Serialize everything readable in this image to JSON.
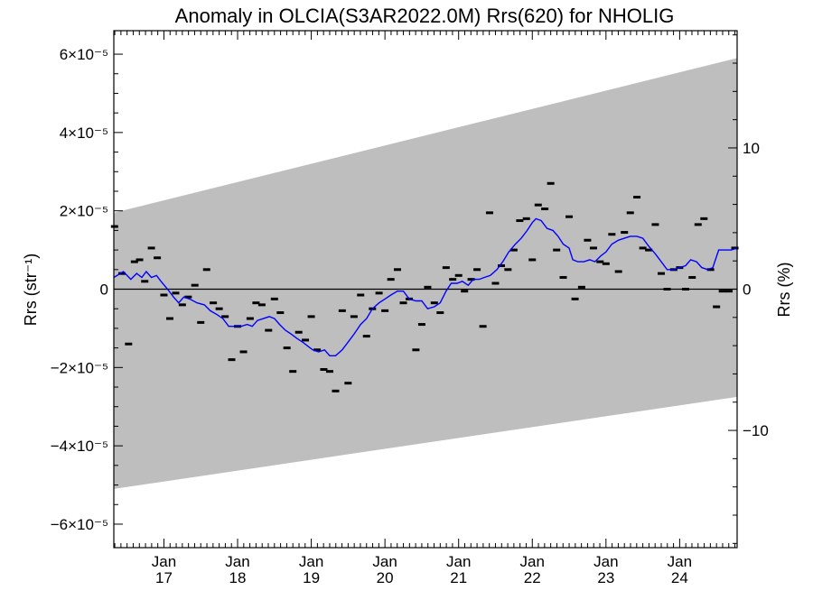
{
  "chart_data": {
    "type": "scatter",
    "title": "Anomaly in OLCIA(S3AR2022.0M) Rrs(620) for NHOLIG",
    "ylabel": "Rrs (str⁻¹)",
    "y2label": "Rrs (%)",
    "xlabel": "",
    "xlim": [
      2016.32,
      2024.78
    ],
    "ylim": [
      -6.6e-05,
      6.6e-05
    ],
    "y2lim": [
      -18.3,
      18.3
    ],
    "y_ticks": [
      {
        "value": 6e-05,
        "label": "6×10⁻⁵"
      },
      {
        "value": 4e-05,
        "label": "4×10⁻⁵"
      },
      {
        "value": 2e-05,
        "label": "2×10⁻⁵"
      },
      {
        "value": 0,
        "label": "0"
      },
      {
        "value": -2e-05,
        "label": "−2×10⁻⁵"
      },
      {
        "value": -4e-05,
        "label": "−4×10⁻⁵"
      },
      {
        "value": -6e-05,
        "label": "−6×10⁻⁵"
      }
    ],
    "y2_ticks": [
      {
        "value": 10,
        "label": "10"
      },
      {
        "value": 0,
        "label": "0"
      },
      {
        "value": -10,
        "label": "−10"
      }
    ],
    "x_ticks": [
      {
        "value": 2017.0,
        "month": "Jan",
        "year": "17"
      },
      {
        "value": 2018.0,
        "month": "Jan",
        "year": "18"
      },
      {
        "value": 2019.0,
        "month": "Jan",
        "year": "19"
      },
      {
        "value": 2020.0,
        "month": "Jan",
        "year": "20"
      },
      {
        "value": 2021.0,
        "month": "Jan",
        "year": "21"
      },
      {
        "value": 2022.0,
        "month": "Jan",
        "year": "22"
      },
      {
        "value": 2023.0,
        "month": "Jan",
        "year": "23"
      },
      {
        "value": 2024.0,
        "month": "Jan",
        "year": "24"
      }
    ],
    "band": {
      "upper": [
        [
          2016.32,
          1.95e-05
        ],
        [
          2024.78,
          5.9e-05
        ]
      ],
      "lower": [
        [
          2016.32,
          -5.1e-05
        ],
        [
          2024.78,
          -2.75e-05
        ]
      ],
      "color": "#bebebe"
    },
    "zero_line": true,
    "series": [
      {
        "kind": "monthly_points",
        "color": "#000000",
        "points": [
          [
            2016.33,
            1.6e-05
          ],
          [
            2016.43,
            4e-06
          ],
          [
            2016.52,
            -1.4e-05
          ],
          [
            2016.6,
            7e-06
          ],
          [
            2016.67,
            7.5e-06
          ],
          [
            2016.74,
            2e-06
          ],
          [
            2016.83,
            1.05e-05
          ],
          [
            2016.91,
            8e-06
          ],
          [
            2017.0,
            -1.5e-06
          ],
          [
            2017.08,
            -7.5e-06
          ],
          [
            2017.16,
            -1e-06
          ],
          [
            2017.25,
            -4e-06
          ],
          [
            2017.33,
            -2e-06
          ],
          [
            2017.42,
            1e-06
          ],
          [
            2017.5,
            -8.5e-06
          ],
          [
            2017.58,
            5e-06
          ],
          [
            2017.67,
            -3.5e-06
          ],
          [
            2017.75,
            -5e-06
          ],
          [
            2017.83,
            -7e-06
          ],
          [
            2017.92,
            -1.8e-05
          ],
          [
            2018.0,
            -9.5e-06
          ],
          [
            2018.08,
            -1.6e-05
          ],
          [
            2018.17,
            -7.5e-06
          ],
          [
            2018.25,
            -3.5e-06
          ],
          [
            2018.33,
            -4e-06
          ],
          [
            2018.42,
            -1.05e-05
          ],
          [
            2018.5,
            -2.5e-06
          ],
          [
            2018.58,
            -6e-06
          ],
          [
            2018.67,
            -1.5e-05
          ],
          [
            2018.75,
            -2.1e-05
          ],
          [
            2018.83,
            -1.1e-05
          ],
          [
            2018.92,
            -1.3e-05
          ],
          [
            2019.0,
            -7e-06
          ],
          [
            2019.08,
            -1.55e-05
          ],
          [
            2019.17,
            -2.05e-05
          ],
          [
            2019.25,
            -2.1e-05
          ],
          [
            2019.33,
            -2.6e-05
          ],
          [
            2019.42,
            -5.5e-06
          ],
          [
            2019.5,
            -2.4e-05
          ],
          [
            2019.58,
            -7e-06
          ],
          [
            2019.67,
            -1.5e-06
          ],
          [
            2019.75,
            -1.2e-05
          ],
          [
            2019.83,
            -5e-06
          ],
          [
            2019.92,
            -1e-06
          ],
          [
            2020.0,
            -5.5e-06
          ],
          [
            2020.08,
            2.5e-06
          ],
          [
            2020.17,
            5e-06
          ],
          [
            2020.25,
            -3.5e-06
          ],
          [
            2020.33,
            -2.5e-06
          ],
          [
            2020.42,
            -1.55e-05
          ],
          [
            2020.5,
            -9e-06
          ],
          [
            2020.58,
            5e-07
          ],
          [
            2020.67,
            -3.5e-06
          ],
          [
            2020.75,
            -6e-06
          ],
          [
            2020.83,
            5.5e-06
          ],
          [
            2020.92,
            2.5e-06
          ],
          [
            2021.0,
            3.5e-06
          ],
          [
            2021.08,
            -5e-07
          ],
          [
            2021.17,
            2.5e-06
          ],
          [
            2021.25,
            5e-06
          ],
          [
            2021.33,
            -9.5e-06
          ],
          [
            2021.42,
            1.95e-05
          ],
          [
            2021.5,
            1.5e-06
          ],
          [
            2021.58,
            6e-06
          ],
          [
            2021.67,
            5e-06
          ],
          [
            2021.75,
            1e-05
          ],
          [
            2021.83,
            1.75e-05
          ],
          [
            2021.92,
            1.8e-05
          ],
          [
            2022.0,
            7.5e-06
          ],
          [
            2022.08,
            2.15e-05
          ],
          [
            2022.17,
            2.05e-05
          ],
          [
            2022.25,
            2.7e-05
          ],
          [
            2022.33,
            1e-05
          ],
          [
            2022.42,
            3e-06
          ],
          [
            2022.5,
            1.85e-05
          ],
          [
            2022.58,
            -2.5e-06
          ],
          [
            2022.67,
            5e-07
          ],
          [
            2022.75,
            1.25e-05
          ],
          [
            2022.83,
            1.05e-05
          ],
          [
            2022.92,
            7e-06
          ],
          [
            2023.0,
            6.5e-06
          ],
          [
            2023.08,
            1.4e-05
          ],
          [
            2023.17,
            4.5e-06
          ],
          [
            2023.25,
            1.45e-05
          ],
          [
            2023.33,
            1.95e-05
          ],
          [
            2023.42,
            2.35e-05
          ],
          [
            2023.5,
            1.05e-05
          ],
          [
            2023.58,
            1e-05
          ],
          [
            2023.67,
            1.65e-05
          ],
          [
            2023.75,
            4e-06
          ],
          [
            2023.83,
            0.0
          ],
          [
            2023.92,
            5e-06
          ],
          [
            2024.0,
            5.5e-06
          ],
          [
            2024.08,
            0.0
          ],
          [
            2024.17,
            3e-06
          ],
          [
            2024.25,
            1.65e-05
          ],
          [
            2024.33,
            1.8e-05
          ],
          [
            2024.42,
            5e-06
          ],
          [
            2024.5,
            -4.5e-06
          ],
          [
            2024.58,
            -5e-07
          ],
          [
            2024.67,
            -5e-07
          ],
          [
            2024.75,
            1.05e-05
          ]
        ]
      },
      {
        "kind": "running_mean",
        "color": "#0000ff",
        "points": [
          [
            2016.32,
            3e-06
          ],
          [
            2016.45,
            4.5e-06
          ],
          [
            2016.55,
            2.5e-06
          ],
          [
            2016.63,
            4e-06
          ],
          [
            2016.7,
            3e-06
          ],
          [
            2016.76,
            4.5e-06
          ],
          [
            2016.83,
            3e-06
          ],
          [
            2016.9,
            3.5e-06
          ],
          [
            2016.96,
            2e-06
          ],
          [
            2017.05,
            0.0
          ],
          [
            2017.13,
            -2e-06
          ],
          [
            2017.2,
            -3.5e-06
          ],
          [
            2017.27,
            -2e-06
          ],
          [
            2017.35,
            -2.5e-06
          ],
          [
            2017.45,
            -3.5e-06
          ],
          [
            2017.55,
            -4e-06
          ],
          [
            2017.63,
            -5.5e-06
          ],
          [
            2017.72,
            -6.5e-06
          ],
          [
            2017.8,
            -7.5e-06
          ],
          [
            2017.88,
            -9.5e-06
          ],
          [
            2017.96,
            -9.5e-06
          ],
          [
            2018.05,
            -9.5e-06
          ],
          [
            2018.13,
            -9e-06
          ],
          [
            2018.2,
            -9.5e-06
          ],
          [
            2018.27,
            -8e-06
          ],
          [
            2018.35,
            -7.5e-06
          ],
          [
            2018.43,
            -7e-06
          ],
          [
            2018.5,
            -7.5e-06
          ],
          [
            2018.57,
            -9e-06
          ],
          [
            2018.65,
            -1.05e-05
          ],
          [
            2018.73,
            -1.15e-05
          ],
          [
            2018.8,
            -1.25e-05
          ],
          [
            2018.88,
            -1.35e-05
          ],
          [
            2018.95,
            -1.45e-05
          ],
          [
            2019.02,
            -1.55e-05
          ],
          [
            2019.1,
            -1.6e-05
          ],
          [
            2019.18,
            -1.55e-05
          ],
          [
            2019.25,
            -1.7e-05
          ],
          [
            2019.33,
            -1.7e-05
          ],
          [
            2019.42,
            -1.55e-05
          ],
          [
            2019.5,
            -1.35e-05
          ],
          [
            2019.58,
            -1.15e-05
          ],
          [
            2019.67,
            -9e-06
          ],
          [
            2019.75,
            -7.5e-06
          ],
          [
            2019.83,
            -5e-06
          ],
          [
            2019.92,
            -3.5e-06
          ],
          [
            2020.0,
            -2.5e-06
          ],
          [
            2020.08,
            -1.5e-06
          ],
          [
            2020.17,
            -5e-07
          ],
          [
            2020.25,
            -5e-07
          ],
          [
            2020.33,
            -2.5e-06
          ],
          [
            2020.42,
            -3e-06
          ],
          [
            2020.5,
            -3e-06
          ],
          [
            2020.58,
            -5e-06
          ],
          [
            2020.67,
            -4.5e-06
          ],
          [
            2020.75,
            -3.5e-06
          ],
          [
            2020.83,
            -5e-07
          ],
          [
            2020.9,
            1.5e-06
          ],
          [
            2020.98,
            1.5e-06
          ],
          [
            2021.05,
            2e-06
          ],
          [
            2021.13,
            1e-06
          ],
          [
            2021.2,
            2.5e-06
          ],
          [
            2021.28,
            2.5e-06
          ],
          [
            2021.35,
            3e-06
          ],
          [
            2021.43,
            3.5e-06
          ],
          [
            2021.52,
            5e-06
          ],
          [
            2021.6,
            7e-06
          ],
          [
            2021.68,
            9.5e-06
          ],
          [
            2021.77,
            1.15e-05
          ],
          [
            2021.85,
            1.3e-05
          ],
          [
            2021.93,
            1.5e-05
          ],
          [
            2022.0,
            1.7e-05
          ],
          [
            2022.05,
            1.8e-05
          ],
          [
            2022.12,
            1.75e-05
          ],
          [
            2022.2,
            1.55e-05
          ],
          [
            2022.28,
            1.5e-05
          ],
          [
            2022.35,
            1.35e-05
          ],
          [
            2022.42,
            1.15e-05
          ],
          [
            2022.5,
            1.05e-05
          ],
          [
            2022.55,
            7.5e-06
          ],
          [
            2022.62,
            7e-06
          ],
          [
            2022.7,
            7e-06
          ],
          [
            2022.78,
            7.5e-06
          ],
          [
            2022.85,
            7e-06
          ],
          [
            2022.93,
            8.5e-06
          ],
          [
            2023.0,
            9.5e-06
          ],
          [
            2023.08,
            1.15e-05
          ],
          [
            2023.17,
            1.25e-05
          ],
          [
            2023.25,
            1.3e-05
          ],
          [
            2023.33,
            1.35e-05
          ],
          [
            2023.42,
            1.35e-05
          ],
          [
            2023.5,
            1.3e-05
          ],
          [
            2023.58,
            1.1e-05
          ],
          [
            2023.67,
            9e-06
          ],
          [
            2023.75,
            7e-06
          ],
          [
            2023.83,
            5e-06
          ],
          [
            2023.92,
            5e-06
          ],
          [
            2024.0,
            5.5e-06
          ],
          [
            2024.08,
            6e-06
          ],
          [
            2024.15,
            7.5e-06
          ],
          [
            2024.23,
            7e-06
          ],
          [
            2024.3,
            5.5e-06
          ],
          [
            2024.38,
            5e-06
          ],
          [
            2024.45,
            5.5e-06
          ],
          [
            2024.53,
            1e-05
          ],
          [
            2024.62,
            1e-05
          ],
          [
            2024.7,
            1e-05
          ],
          [
            2024.78,
            1.05e-05
          ]
        ]
      }
    ]
  }
}
